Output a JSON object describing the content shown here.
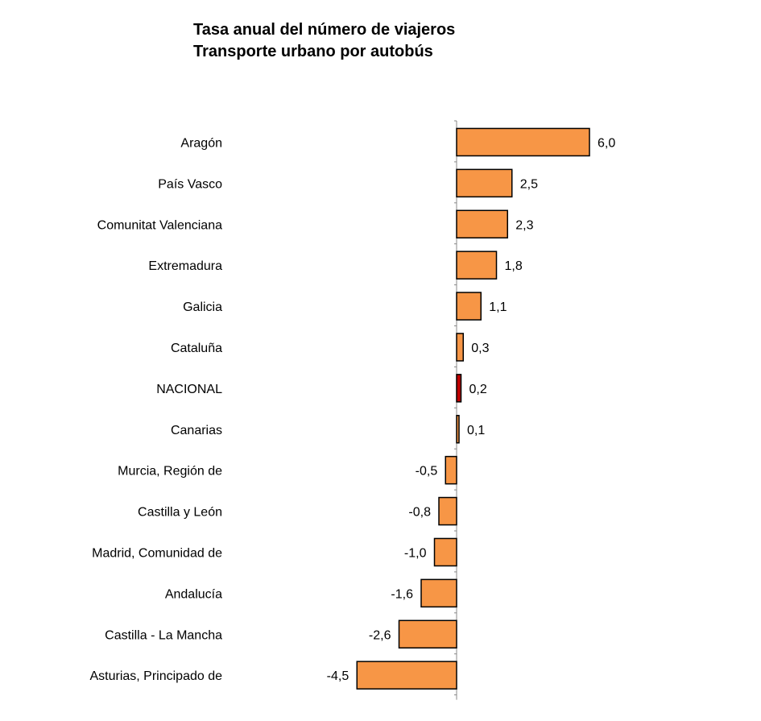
{
  "chart_data": {
    "type": "bar",
    "orientation": "horizontal",
    "title": "Tasa anual del número de viajeros",
    "subtitle": "Transporte urbano por autobús",
    "categories": [
      "Aragón",
      "País Vasco",
      "Comunitat Valenciana",
      "Extremadura",
      "Galicia",
      "Cataluña",
      "NACIONAL",
      "Canarias",
      "Murcia, Región de",
      "Castilla y León",
      "Madrid, Comunidad de",
      "Andalucía",
      "Castilla - La Mancha",
      "Asturias, Principado de"
    ],
    "values": [
      6.0,
      2.5,
      2.3,
      1.8,
      1.1,
      0.3,
      0.2,
      0.1,
      -0.5,
      -0.8,
      -1.0,
      -1.6,
      -2.6,
      -4.5
    ],
    "value_labels": [
      "6,0",
      "2,5",
      "2,3",
      "1,8",
      "1,1",
      "0,3",
      "0,2",
      "0,1",
      "-0,5",
      "-0,8",
      "-1,0",
      "-1,6",
      "-2,6",
      "-4,5"
    ],
    "bar_color": "#F79646",
    "highlight_category": "NACIONAL",
    "highlight_color": "#C00000",
    "xlim": [
      -4.5,
      6.0
    ],
    "grid": false,
    "legend": "none"
  }
}
